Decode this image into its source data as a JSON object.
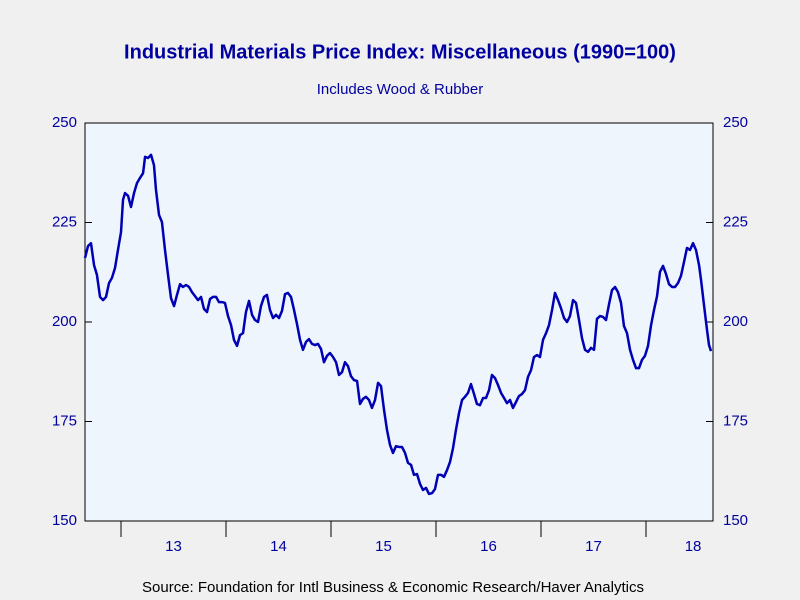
{
  "chart_data": {
    "type": "line",
    "title": "Industrial Materials Price Index: Miscellaneous (1990=100)",
    "subtitle": "Includes Wood & Rubber",
    "source": "Source:  Foundation for Intl Business & Economic Research/Haver Analytics",
    "color": "#0000b4",
    "x": [
      2012.657,
      2012.686,
      2012.714,
      2012.743,
      2012.771,
      2012.8,
      2012.829,
      2012.857,
      2012.886,
      2012.914,
      2012.943,
      2012.971,
      2013.0,
      2013.019,
      2013.038,
      2013.067,
      2013.095,
      2013.124,
      2013.152,
      2013.181,
      2013.21,
      2013.229,
      2013.257,
      2013.286,
      2013.314,
      2013.333,
      2013.362,
      2013.39,
      2013.419,
      2013.448,
      2013.476,
      2013.505,
      2013.533,
      2013.562,
      2013.59,
      2013.619,
      2013.648,
      2013.676,
      2013.705,
      2013.733,
      2013.762,
      2013.79,
      2013.819,
      2013.848,
      2013.876,
      2013.905,
      2013.933,
      2013.962,
      2013.99,
      2014.019,
      2014.048,
      2014.076,
      2014.105,
      2014.133,
      2014.162,
      2014.19,
      2014.219,
      2014.248,
      2014.276,
      2014.305,
      2014.333,
      2014.362,
      2014.39,
      2014.419,
      2014.448,
      2014.476,
      2014.505,
      2014.533,
      2014.562,
      2014.59,
      2014.619,
      2014.648,
      2014.676,
      2014.705,
      2014.733,
      2014.762,
      2014.79,
      2014.819,
      2014.848,
      2014.876,
      2014.905,
      2014.933,
      2014.962,
      2014.99,
      2015.019,
      2015.048,
      2015.076,
      2015.105,
      2015.133,
      2015.162,
      2015.19,
      2015.219,
      2015.248,
      2015.276,
      2015.305,
      2015.333,
      2015.362,
      2015.39,
      2015.419,
      2015.448,
      2015.476,
      2015.505,
      2015.533,
      2015.562,
      2015.59,
      2015.619,
      2015.648,
      2015.676,
      2015.705,
      2015.733,
      2015.762,
      2015.79,
      2015.819,
      2015.848,
      2015.876,
      2015.905,
      2015.933,
      2015.962,
      2015.99,
      2016.019,
      2016.048,
      2016.076,
      2016.105,
      2016.133,
      2016.162,
      2016.19,
      2016.219,
      2016.248,
      2016.276,
      2016.305,
      2016.333,
      2016.362,
      2016.39,
      2016.419,
      2016.448,
      2016.476,
      2016.505,
      2016.533,
      2016.562,
      2016.59,
      2016.619,
      2016.648,
      2016.676,
      2016.705,
      2016.733,
      2016.762,
      2016.79,
      2016.819,
      2016.848,
      2016.876,
      2016.905,
      2016.933,
      2016.962,
      2016.99,
      2017.019,
      2017.048,
      2017.076,
      2017.105,
      2017.133,
      2017.162,
      2017.19,
      2017.219,
      2017.248,
      2017.276,
      2017.305,
      2017.333,
      2017.362,
      2017.39,
      2017.419,
      2017.448,
      2017.476,
      2017.505,
      2017.533,
      2017.562,
      2017.59,
      2017.619,
      2017.648,
      2017.676,
      2017.705,
      2017.733,
      2017.762,
      2017.79,
      2017.819,
      2017.848,
      2017.876,
      2017.905,
      2017.933,
      2017.962,
      2017.99,
      2018.019,
      2018.048,
      2018.076,
      2018.105,
      2018.133,
      2018.162,
      2018.19,
      2018.219,
      2018.248,
      2018.276,
      2018.305,
      2018.333,
      2018.362,
      2018.39,
      2018.419,
      2018.448,
      2018.476,
      2018.505,
      2018.524,
      2018.552,
      2018.581,
      2018.6,
      2018.619
    ],
    "values": [
      216.1,
      219.1,
      219.8,
      214.3,
      211.8,
      206.3,
      205.5,
      206.3,
      209.8,
      211.1,
      213.6,
      218.1,
      222.6,
      230.7,
      232.4,
      231.7,
      228.9,
      232.4,
      234.9,
      236.2,
      237.4,
      241.5,
      241.2,
      242,
      239.4,
      233.2,
      226.9,
      225.1,
      218.1,
      211.8,
      206,
      204,
      206.8,
      209.5,
      208.8,
      209.3,
      208.8,
      207.5,
      206.5,
      205.5,
      206.3,
      203.3,
      202.5,
      205.8,
      206.3,
      206.3,
      205,
      205,
      204.8,
      201.5,
      199.2,
      195.5,
      194,
      196.7,
      197.2,
      202.5,
      205.3,
      201.8,
      200.5,
      200,
      204,
      206.3,
      206.8,
      203,
      201,
      201.8,
      201,
      202.8,
      207,
      207.3,
      206.3,
      203,
      199.5,
      195.5,
      193,
      195,
      195.7,
      194.5,
      194.2,
      194.5,
      193.2,
      189.9,
      191.5,
      192.2,
      191.2,
      189.9,
      186.7,
      187.4,
      189.9,
      188.9,
      186.4,
      185.4,
      185.2,
      179.4,
      180.7,
      181.2,
      180.4,
      178.4,
      180.4,
      184.7,
      183.9,
      177.9,
      172.9,
      169.1,
      167.1,
      168.8,
      168.6,
      168.6,
      167.1,
      164.6,
      164.1,
      161.6,
      161.8,
      159.3,
      157.8,
      158.3,
      156.8,
      157,
      158,
      161.6,
      161.6,
      161.1,
      162.8,
      164.8,
      168.3,
      172.9,
      177.1,
      180.4,
      181.2,
      182.2,
      184.4,
      181.9,
      179.4,
      179.1,
      180.9,
      180.9,
      182.9,
      186.7,
      185.9,
      184.2,
      182.2,
      180.9,
      179.6,
      180.4,
      178.4,
      179.9,
      181.4,
      181.9,
      182.9,
      186.2,
      187.9,
      191.2,
      191.7,
      191.2,
      195.5,
      197.2,
      199.2,
      203,
      207.3,
      205.5,
      203.5,
      201,
      200,
      201.5,
      205.5,
      204.8,
      200.5,
      196,
      193,
      192.5,
      193.5,
      193,
      200.8,
      201.5,
      201.3,
      200.5,
      204.5,
      208,
      208.8,
      207.5,
      204.8,
      199,
      197.2,
      193,
      190.5,
      188.4,
      188.4,
      190.5,
      191.5,
      194,
      199.2,
      203,
      206.5,
      212.6,
      214.1,
      212.1,
      209.5,
      208.8,
      208.8,
      209.8,
      211.6,
      215.1,
      218.6,
      218.1,
      219.8,
      218.1,
      214.3,
      210.6,
      204.3,
      198,
      194.2,
      192.7
    ],
    "xlim": [
      2012.657,
      2018.638
    ],
    "xtick_marks": [
      2013,
      2014,
      2015,
      2016,
      2017,
      2018
    ],
    "xticks": [
      {
        "value": 2013.5,
        "label": "13"
      },
      {
        "value": 2014.5,
        "label": "14"
      },
      {
        "value": 2015.5,
        "label": "15"
      },
      {
        "value": 2016.5,
        "label": "16"
      },
      {
        "value": 2017.5,
        "label": "17"
      },
      {
        "value": 2018.448,
        "label": "18"
      }
    ],
    "ylim": [
      150,
      250
    ],
    "yticks": [
      150,
      175,
      200,
      225,
      250
    ],
    "y2lim": [
      150,
      250
    ],
    "y2ticks": [
      150,
      175,
      200,
      225,
      250
    ]
  }
}
